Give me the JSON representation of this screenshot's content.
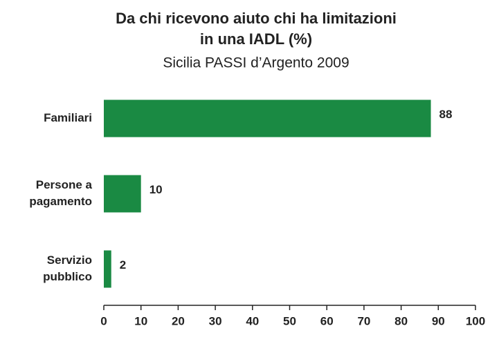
{
  "chart_data": {
    "type": "barh",
    "title": [
      "Da chi ricevono aiuto chi ha limitazioni",
      "in una IADL (%)"
    ],
    "subtitle": "Sicilia PASSI d’Argento 2009",
    "categories": [
      [
        "Familiari"
      ],
      [
        "Persone a",
        "pagamento"
      ],
      [
        "Servizio",
        "pubblico"
      ]
    ],
    "values": [
      88,
      10,
      2
    ],
    "color": "#1a8a43",
    "xlim": [
      0,
      100
    ],
    "xticks": [
      0,
      10,
      20,
      30,
      40,
      50,
      60,
      70,
      80,
      90,
      100
    ],
    "grid": false
  }
}
